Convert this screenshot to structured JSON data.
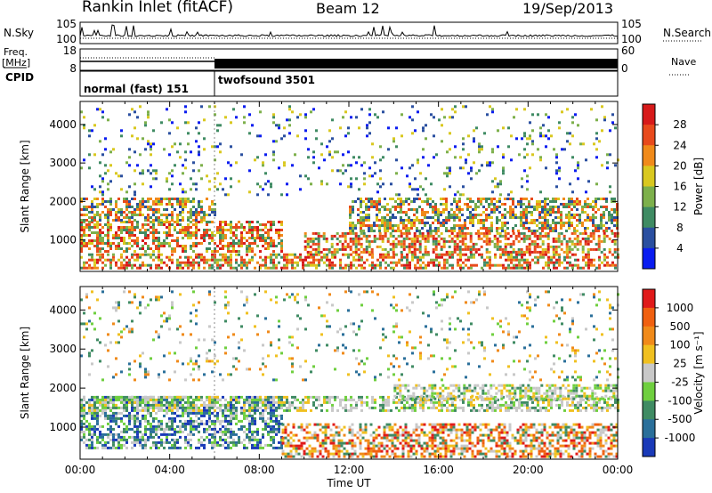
{
  "header": {
    "title": "Rankin Inlet (fitACF)",
    "beam": "Beam 12",
    "date": "19/Sep/2013"
  },
  "side_labels": {
    "nsky": "N.Sky",
    "freq": "Freq.",
    "mhz": "[MHz]",
    "cpid": "CPID",
    "nsearch": "N.Search",
    "nave": "Nave"
  },
  "noise_panel": {
    "left_ticks": [
      "10^5",
      "10^0"
    ],
    "right_ticks": [
      "10^5",
      "10^0"
    ]
  },
  "freq_panel": {
    "left_ticks": [
      "18",
      "8"
    ],
    "right_ticks": [
      "60",
      "0"
    ]
  },
  "cpid_panel": {
    "modes": [
      {
        "label": "normal (fast) 151",
        "start_hour": 0,
        "end_hour": 6
      },
      {
        "label": "twofsound 3501",
        "start_hour": 6,
        "end_hour": 24
      }
    ]
  },
  "chart_data": [
    {
      "type": "heatmap",
      "name": "power",
      "title": "",
      "xlabel": "",
      "ylabel": "Slant Range [km]",
      "xlim": [
        0,
        24
      ],
      "ylim": [
        180,
        4600
      ],
      "y_ticks": [
        1000,
        2000,
        3000,
        4000
      ],
      "colorbar": {
        "label": "Power [dB]",
        "ticks": [
          "4",
          "8",
          "12",
          "16",
          "20",
          "24",
          "28"
        ],
        "colors": [
          "#0a1cf0",
          "#2a4fa0",
          "#3f8b63",
          "#7db04b",
          "#d9c81f",
          "#f08a1a",
          "#e84a1c",
          "#d71a1a"
        ]
      },
      "scatter_bands": [
        {
          "range_km": [
            250,
            650
          ],
          "hours": [
            0,
            24
          ],
          "level": "high"
        },
        {
          "range_km": [
            700,
            1500
          ],
          "hours": [
            0,
            9
          ],
          "level": "high"
        },
        {
          "range_km": [
            1500,
            2100
          ],
          "hours": [
            0,
            6
          ],
          "level": "medium"
        },
        {
          "range_km": [
            1200,
            2100
          ],
          "hours": [
            12,
            24
          ],
          "level": "medium"
        },
        {
          "range_km": [
            700,
            1200
          ],
          "hours": [
            10,
            24
          ],
          "level": "high"
        },
        {
          "range_km": [
            2200,
            4500
          ],
          "hours": [
            0,
            24
          ],
          "level": "sparse"
        }
      ]
    },
    {
      "type": "heatmap",
      "name": "velocity",
      "title": "",
      "xlabel": "Time UT",
      "ylabel": "Slant Range [km]",
      "xlim": [
        0,
        24
      ],
      "ylim": [
        180,
        4600
      ],
      "x_ticks": [
        "00:00",
        "04:00",
        "08:00",
        "12:00",
        "16:00",
        "20:00",
        "00:00"
      ],
      "y_ticks": [
        1000,
        2000,
        3000,
        4000
      ],
      "colorbar": {
        "label": "Velocity [m s⁻¹]",
        "ticks": [
          "1000",
          "500",
          "100",
          "25",
          "-25",
          "-100",
          "-500",
          "-1000"
        ],
        "colors": [
          "#1a3ab8",
          "#2a6f9a",
          "#3f8b63",
          "#6fcf3f",
          "#c8c8c8",
          "#f0c020",
          "#f08a1a",
          "#f06010",
          "#e01a1a"
        ]
      },
      "scatter_bands": [
        {
          "range_km": [
            500,
            1800
          ],
          "hours": [
            0,
            9
          ],
          "level": "positive"
        },
        {
          "range_km": [
            1400,
            1800
          ],
          "hours": [
            0,
            24
          ],
          "level": "near-zero"
        },
        {
          "range_km": [
            250,
            1100
          ],
          "hours": [
            9,
            24
          ],
          "level": "negative"
        },
        {
          "range_km": [
            1700,
            2100
          ],
          "hours": [
            14,
            24
          ],
          "level": "near-zero"
        },
        {
          "range_km": [
            2200,
            4500
          ],
          "hours": [
            0,
            24
          ],
          "level": "sparse"
        }
      ]
    }
  ]
}
